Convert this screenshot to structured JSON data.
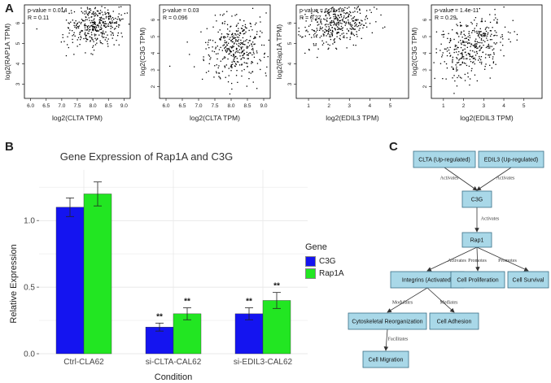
{
  "panels": {
    "a": "A",
    "b": "B",
    "c": "C"
  },
  "chart_data": [
    {
      "type": "scatter",
      "xlabel": "log2(CLTA TPM)",
      "ylabel": "log2(RAP1A TPM)",
      "annotations": [
        "p-value = 0.014",
        "R = 0.11"
      ],
      "xticks": [
        "6.0",
        "6.5",
        "7.0",
        "7.5",
        "8.0",
        "8.5",
        "9.0"
      ],
      "yticks": [
        "3",
        "4",
        "5",
        "6"
      ],
      "xlim": [
        5.8,
        9.2
      ],
      "ylim": [
        2.3,
        6.9
      ],
      "cx": 8.15,
      "cy": 5.95,
      "sx": 0.45,
      "sy": 0.55,
      "corr": 0.11,
      "n": 380,
      "point_color": "#000000"
    },
    {
      "type": "scatter",
      "xlabel": "log2(CLTA TPM)",
      "ylabel": "log2(C3G TPM)",
      "annotations": [
        "p-value = 0.03",
        "R = 0.096"
      ],
      "xticks": [
        "6.0",
        "6.5",
        "7.0",
        "7.5",
        "8.0",
        "8.5",
        "9.0"
      ],
      "yticks": [
        "2",
        "3",
        "4",
        "5",
        "6"
      ],
      "xlim": [
        5.8,
        9.2
      ],
      "ylim": [
        1.3,
        6.9
      ],
      "cx": 8.15,
      "cy": 4.45,
      "sx": 0.45,
      "sy": 0.9,
      "corr": 0.1,
      "n": 380,
      "point_color": "#000000"
    },
    {
      "type": "scatter",
      "xlabel": "log2(EDIL3 TPM)",
      "ylabel": "log2(Rap1A TPM)",
      "annotations": [
        "p-value = 6.2e-10",
        "R = 0.27"
      ],
      "xticks": [
        "1",
        "2",
        "3",
        "4",
        "5"
      ],
      "yticks": [
        "3",
        "4",
        "5",
        "6"
      ],
      "xlim": [
        0.4,
        5.9
      ],
      "ylim": [
        2.3,
        6.9
      ],
      "cx": 2.4,
      "cy": 5.95,
      "sx": 0.85,
      "sy": 0.5,
      "corr": 0.27,
      "n": 380,
      "point_color": "#000000"
    },
    {
      "type": "scatter",
      "xlabel": "log2(EDIL3 TPM)",
      "ylabel": "log2(C3G TPM)",
      "annotations": [
        "p-value = 1.4e-11",
        "R = 0.29"
      ],
      "xticks": [
        "1",
        "2",
        "3",
        "4",
        "5"
      ],
      "yticks": [
        "2",
        "3",
        "4",
        "5",
        "6"
      ],
      "xlim": [
        0.4,
        5.9
      ],
      "ylim": [
        1.3,
        6.9
      ],
      "cx": 2.4,
      "cy": 4.5,
      "sx": 0.85,
      "sy": 0.9,
      "corr": 0.29,
      "n": 380,
      "point_color": "#000000"
    },
    {
      "type": "bar",
      "title": "Gene Expression of Rap1A and C3G",
      "xlabel": "Condition",
      "ylabel": "Relative Expression",
      "categories": [
        "Ctrl-CLA62",
        "si-CLTA-CAL62",
        "si-EDIL3-CAL62"
      ],
      "ylim": [
        0,
        1.38
      ],
      "yticks": [
        "0.0",
        "0.5",
        "1.0"
      ],
      "series": [
        {
          "name": "C3G",
          "values": [
            1.1,
            0.2,
            0.3
          ],
          "errors": [
            0.07,
            0.03,
            0.045
          ],
          "color": "#1414f0"
        },
        {
          "name": "Rap1A",
          "values": [
            1.2,
            0.3,
            0.4
          ],
          "errors": [
            0.09,
            0.045,
            0.06
          ],
          "color": "#22e622"
        }
      ],
      "significance": [
        [
          "",
          "**",
          "**"
        ],
        [
          "",
          "**",
          "**"
        ]
      ],
      "legend_title": "Gene",
      "legend_position": "right",
      "grid": true
    }
  ],
  "flowchart": {
    "nodes": {
      "clta": "CLTA (Up-regulated)",
      "edil3": "EDIL3 (Up-regulated)",
      "c3g": "C3G",
      "rap1": "Rap1",
      "integrins": "Integrins (Activated)",
      "prolif": "Cell Proliferation",
      "survival": "Cell Survival",
      "cytoskel": "Cytoskeletal Reorganization",
      "adhesion": "Cell Adhesion",
      "migration": "Cell Migration"
    },
    "edges": {
      "clta_c3g": "Activates",
      "edil3_c3g": "Activates",
      "c3g_rap1": "Activates",
      "rap1_integrins": "Activates",
      "rap1_prolif": "Promotes",
      "rap1_survival": "Promotes",
      "integrins_cytoskel": "Modulates",
      "integrins_adhesion": "Mediates",
      "cytoskel_migration": "Facilitates"
    },
    "node_color": "#a9d8e8",
    "border_color": "#3a6f86"
  }
}
